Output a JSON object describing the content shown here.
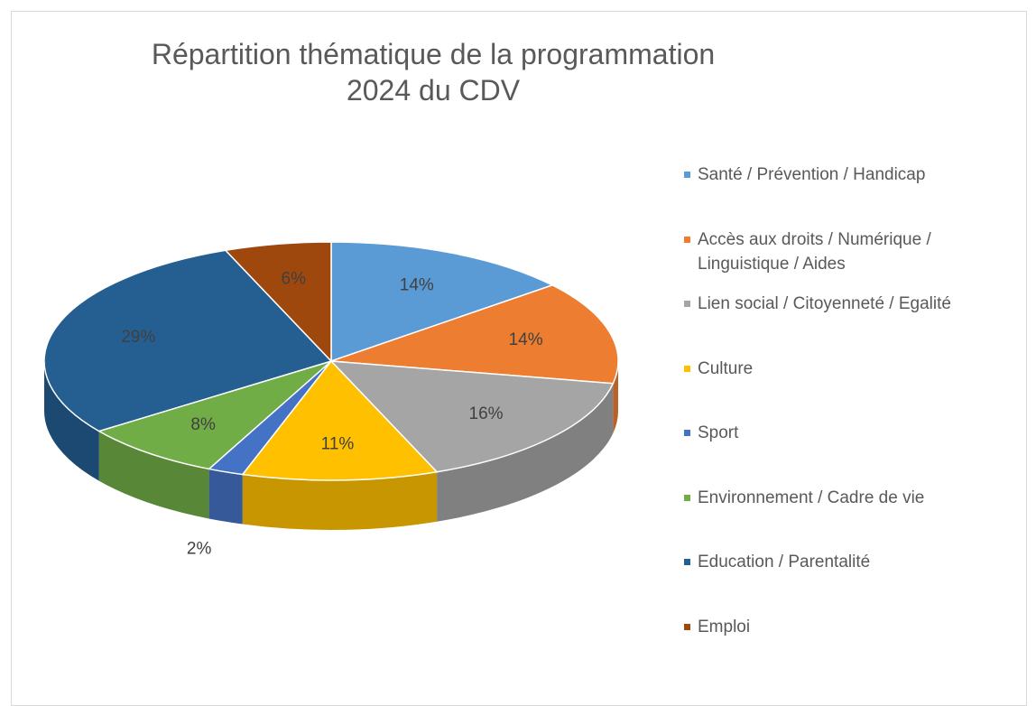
{
  "chart_data": {
    "type": "pie",
    "title": "Répartition thématique de la programmation 2024 du CDV",
    "categories": [
      "Santé / Prévention / Handicap",
      "Accès aux droits / Numérique / Linguistique / Aides",
      "Lien social / Citoyenneté / Egalité",
      "Culture",
      "Sport",
      "Environnement / Cadre de vie",
      "Education / Parentalité",
      "Emploi"
    ],
    "values": [
      14,
      14,
      16,
      11,
      2,
      8,
      29,
      6
    ],
    "value_labels": [
      "14%",
      "14%",
      "16%",
      "11%",
      "2%",
      "8%",
      "29%",
      "6%"
    ],
    "colors": [
      "#5b9bd5",
      "#ed7d31",
      "#a5a5a5",
      "#ffc000",
      "#4472c4",
      "#70ad47",
      "#255e91",
      "#9e480e"
    ],
    "legend": "right",
    "3d": true
  }
}
